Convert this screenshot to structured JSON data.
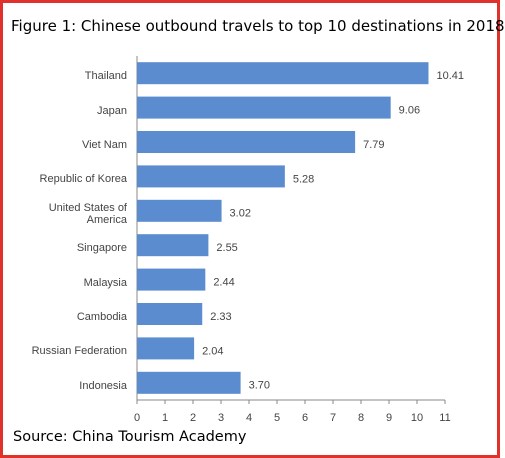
{
  "chart_data": {
    "type": "bar",
    "orientation": "horizontal",
    "title": "Figure 1: Chinese outbound travels to top 10 destinations in 2018",
    "source": "Source: China Tourism Academy",
    "categories": [
      "Thailand",
      "Japan",
      "Viet Nam",
      "Republic of Korea",
      "United States of America",
      "Singapore",
      "Malaysia",
      "Cambodia",
      "Russian Federation",
      "Indonesia"
    ],
    "values": [
      10.41,
      9.06,
      7.79,
      5.28,
      3.02,
      2.55,
      2.44,
      2.33,
      2.04,
      3.7
    ],
    "value_labels": [
      "10.41",
      "9.06",
      "7.79",
      "5.28",
      "3.02",
      "2.55",
      "2.44",
      "2.33",
      "2.04",
      "3.70"
    ],
    "color": "#5a8ccf",
    "xlim": [
      0,
      11
    ],
    "xticks": [
      0,
      1,
      2,
      3,
      4,
      5,
      6,
      7,
      8,
      9,
      10,
      11
    ]
  }
}
